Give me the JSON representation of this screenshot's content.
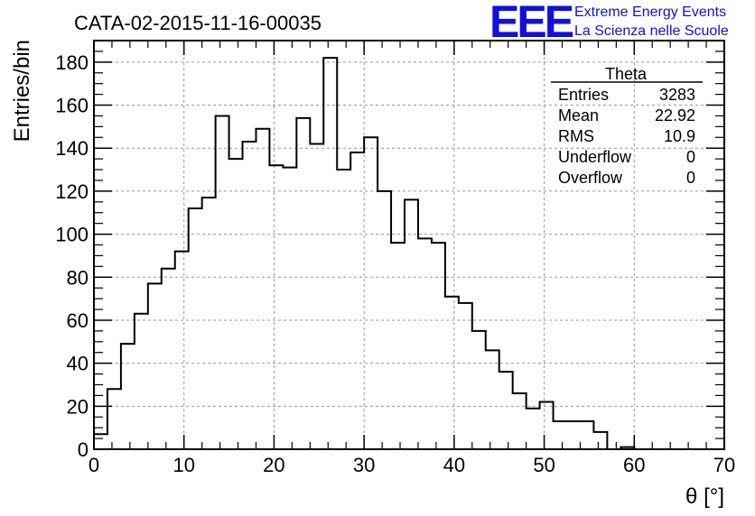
{
  "chart_data": {
    "type": "bar",
    "title": "CATA-02-2015-11-16-00035",
    "xlabel": "θ [°]",
    "ylabel": "Entries/bin",
    "xlim": [
      0,
      70
    ],
    "ylim": [
      0,
      190
    ],
    "grid": true,
    "x_ticks": [
      0,
      10,
      20,
      30,
      40,
      50,
      60,
      70
    ],
    "y_ticks": [
      0,
      20,
      40,
      60,
      80,
      100,
      120,
      140,
      160,
      180
    ],
    "bin_width": 1.5,
    "bin_start": 0,
    "values": [
      7,
      28,
      49,
      63,
      77,
      84,
      92,
      112,
      117,
      155,
      135,
      143,
      149,
      132,
      131,
      154,
      142,
      182,
      130,
      138,
      145,
      120,
      96,
      116,
      98,
      96,
      71,
      68,
      55,
      46,
      36,
      26,
      19,
      22,
      13,
      13,
      13,
      8,
      0,
      1,
      0,
      0,
      0,
      0,
      0,
      0
    ],
    "legend": {
      "title": "Theta",
      "rows": [
        {
          "label": "Entries",
          "value": "3283"
        },
        {
          "label": "Mean",
          "value": "22.92"
        },
        {
          "label": "RMS",
          "value": "10.9"
        },
        {
          "label": "Underflow",
          "value": "0"
        },
        {
          "label": "Overflow",
          "value": "0"
        }
      ],
      "placement": "top-right"
    }
  },
  "logo": {
    "mark": "EEE",
    "line1": "Extreme Energy Events",
    "line2": "La Scienza nelle Scuole",
    "color": "#1010e0"
  },
  "colors": {
    "line": "#000000",
    "grid": "#999999",
    "logo": "#1010e0"
  }
}
